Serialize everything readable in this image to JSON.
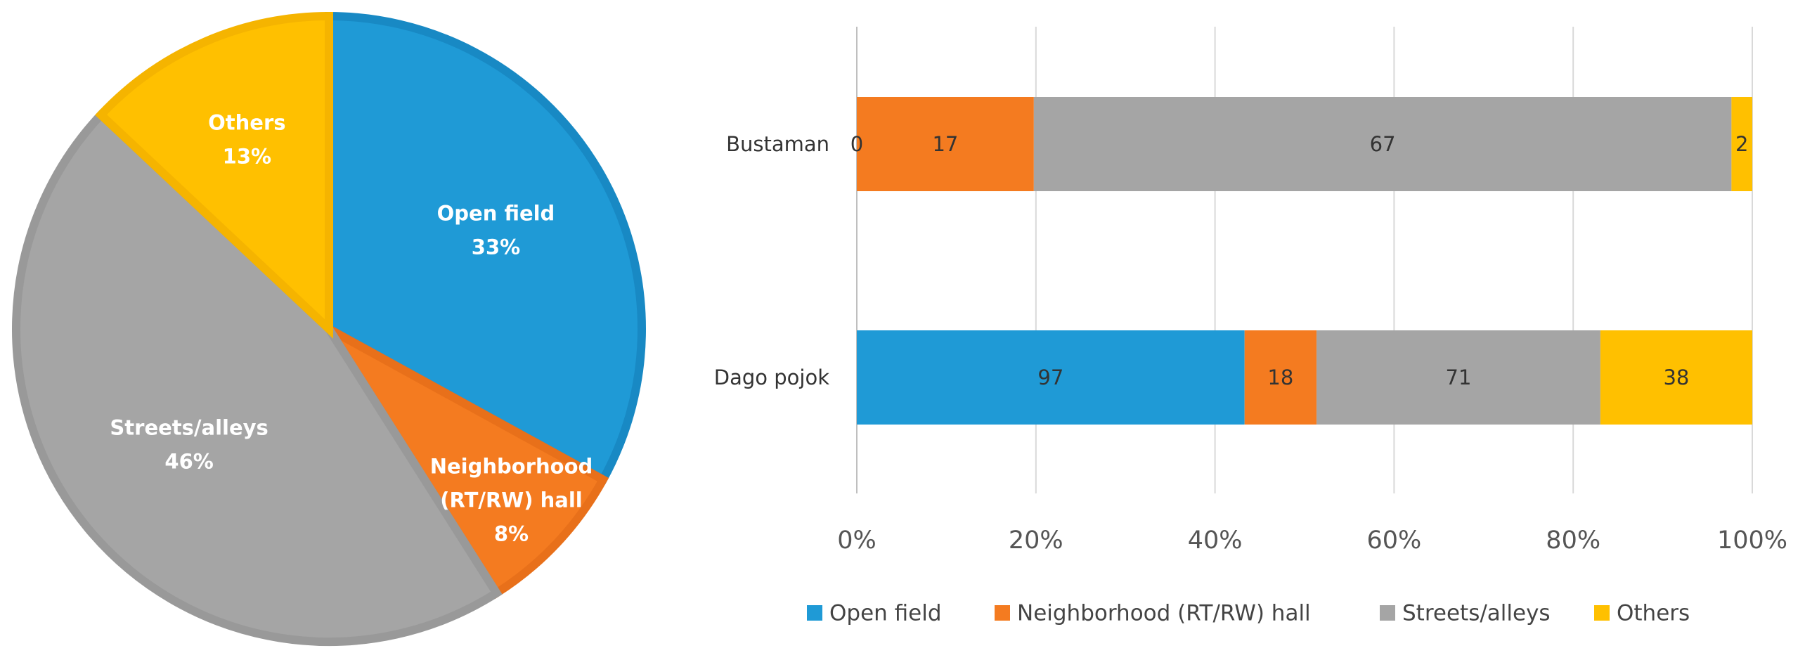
{
  "chart_data": [
    {
      "type": "pie",
      "slices": [
        {
          "label": "Open field",
          "value": 33,
          "value_label": "33%",
          "color": "#1f9ad6",
          "border": "#1889c4"
        },
        {
          "label": "Neighborhood (RT/RW) hall",
          "label_lines": [
            "Neighborhood",
            "(RT/RW) hall"
          ],
          "value": 8,
          "value_label": "8%",
          "color": "#f47b20",
          "border": "#e8701a"
        },
        {
          "label": "Streets/alleys",
          "value": 46,
          "value_label": "46%",
          "color": "#a5a5a5",
          "border": "#999999"
        },
        {
          "label": "Others",
          "value": 13,
          "value_label": "13%",
          "color": "#ffc000",
          "border": "#f5b400"
        }
      ],
      "start": "12 o'clock",
      "direction": "clockwise"
    },
    {
      "type": "bar",
      "orientation": "horizontal",
      "stacked": "100%",
      "categories": [
        "Bustaman",
        "Dago pojok"
      ],
      "series": [
        {
          "name": "Open field",
          "color": "#1f9ad6",
          "values": [
            0,
            97
          ],
          "value_labels": [
            "0",
            "97"
          ]
        },
        {
          "name": "Neighborhood (RT/RW) hall",
          "color": "#f47b20",
          "values": [
            17,
            18
          ],
          "value_labels": [
            "17",
            "18"
          ]
        },
        {
          "name": "Streets/alleys",
          "color": "#a5a5a5",
          "values": [
            67,
            71
          ],
          "value_labels": [
            "67",
            "71"
          ]
        },
        {
          "name": "Others",
          "color": "#ffc000",
          "values": [
            2,
            38
          ],
          "value_labels": [
            "2",
            "38"
          ]
        }
      ],
      "xticks": [
        "0%",
        "20%",
        "40%",
        "60%",
        "80%",
        "100%"
      ],
      "xlim": [
        0,
        100
      ],
      "grid": "vertical",
      "legend_position": "bottom"
    }
  ]
}
